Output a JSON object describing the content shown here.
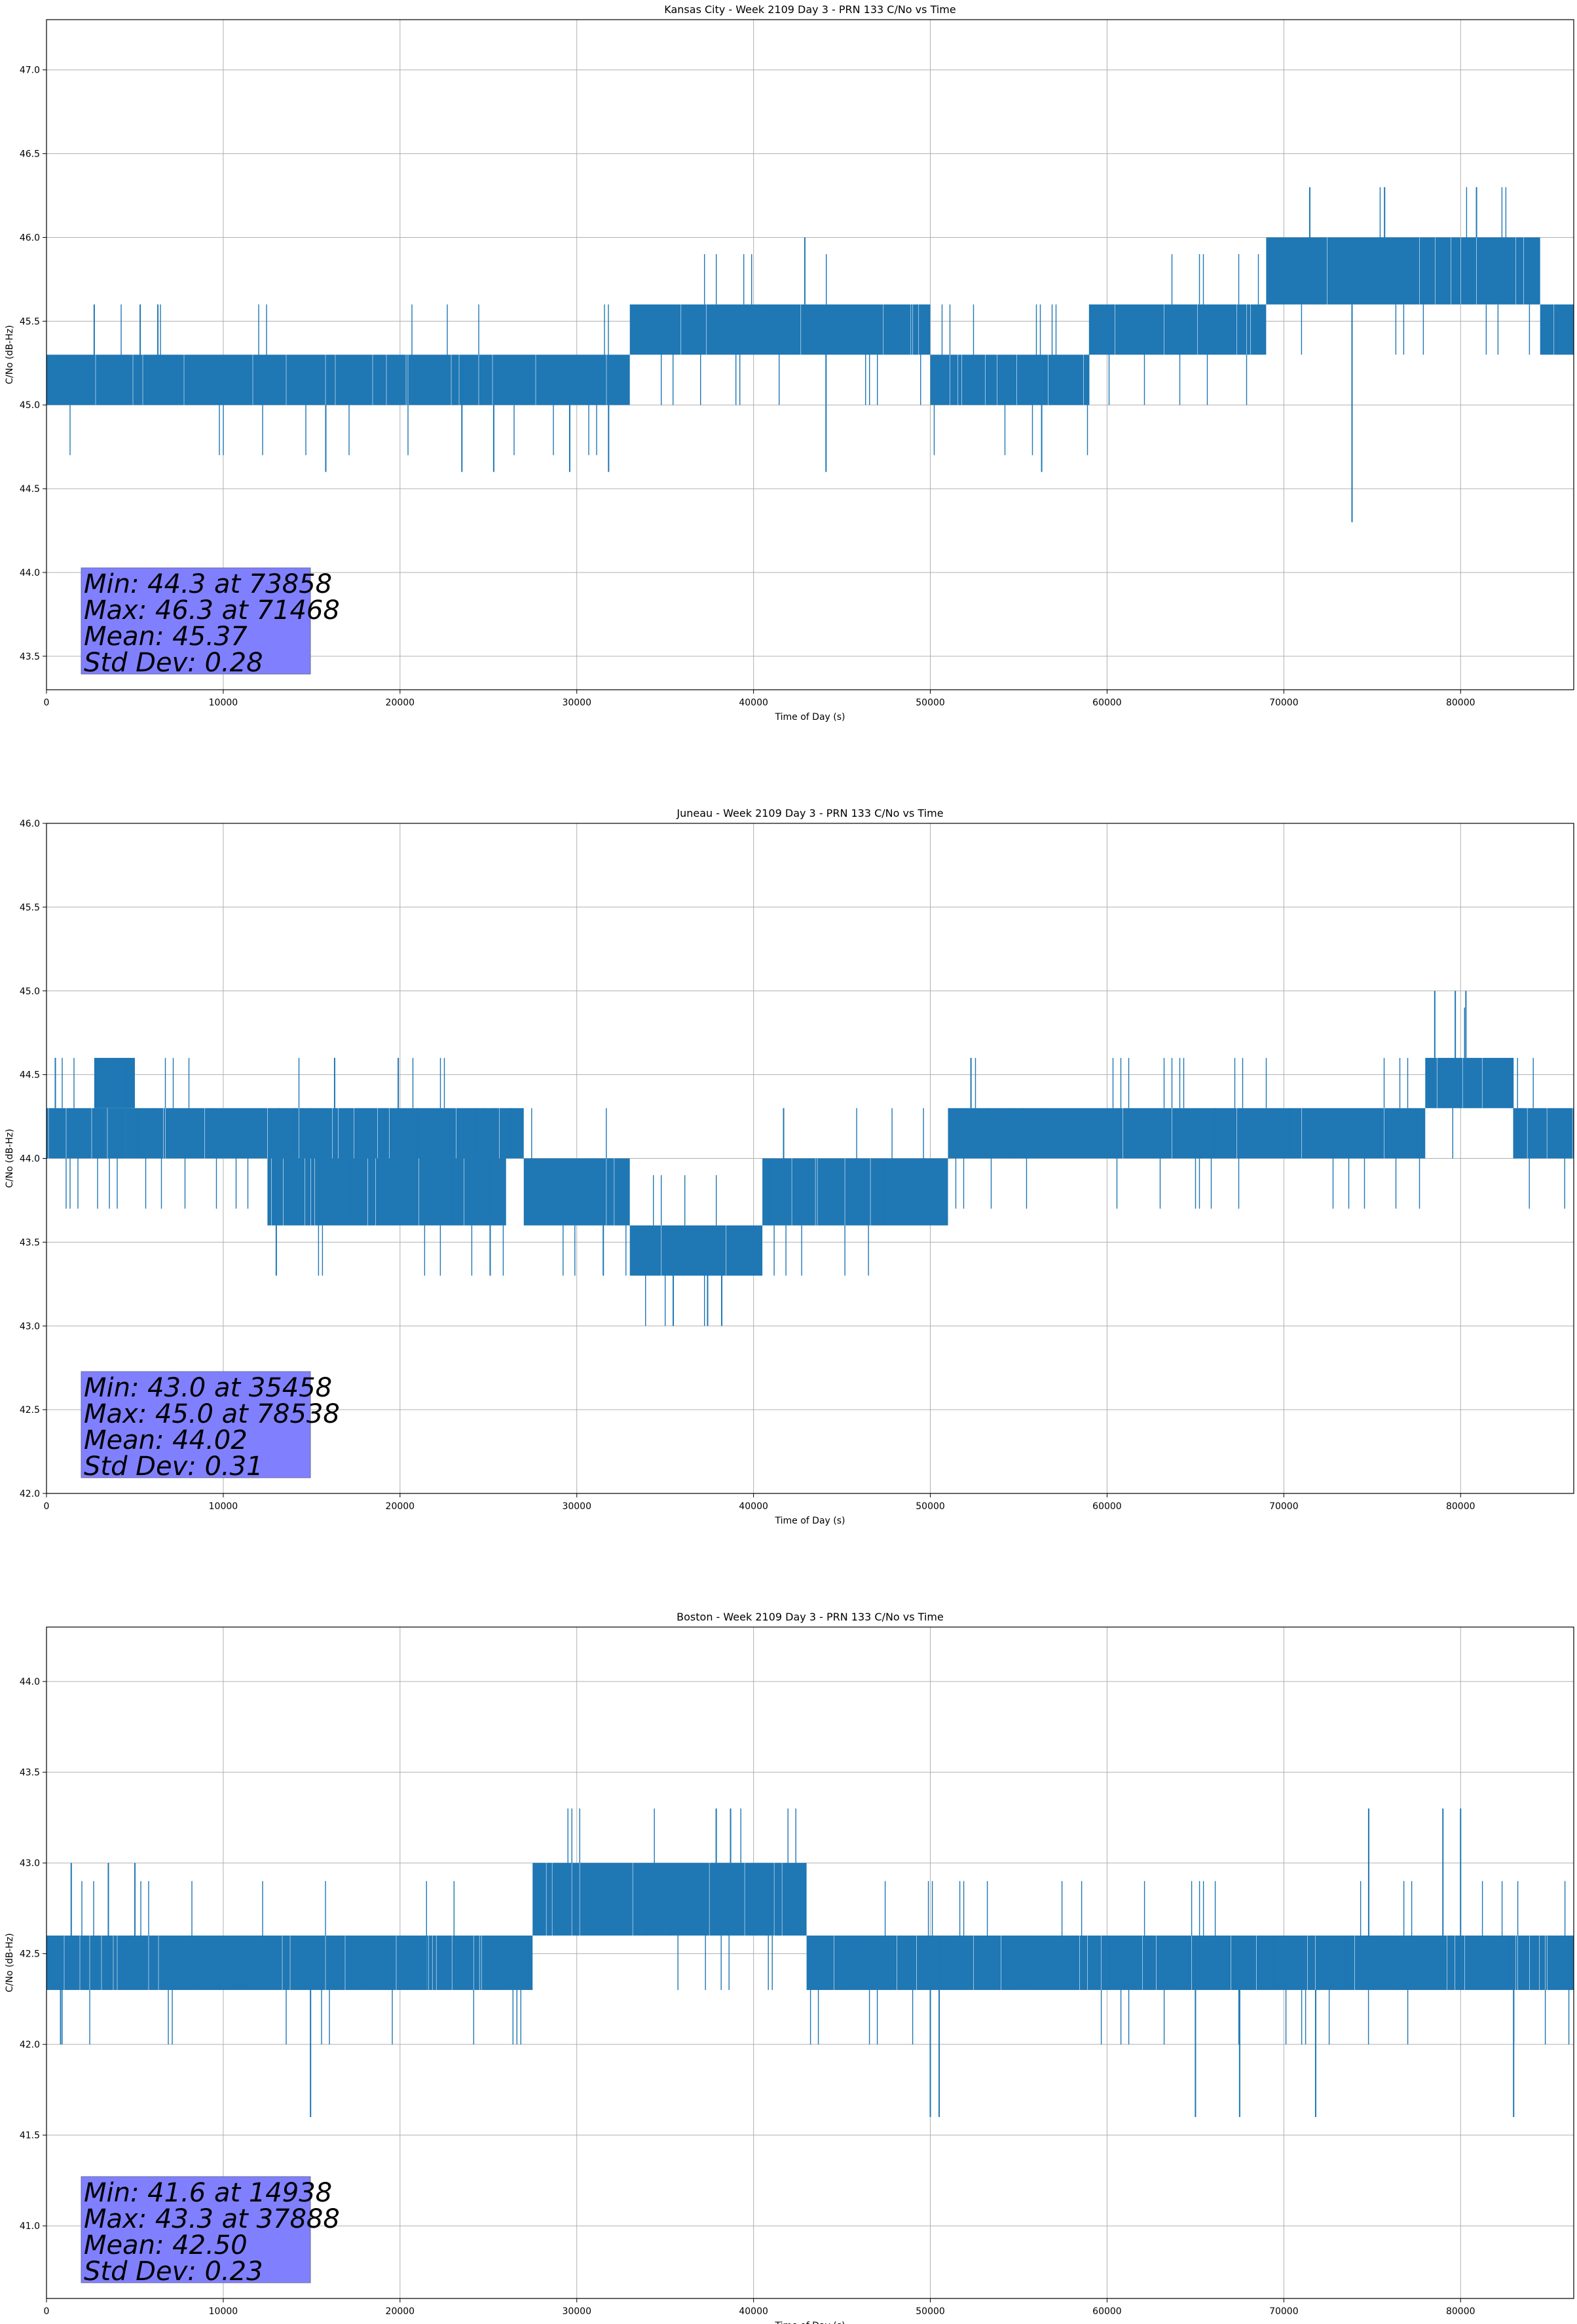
{
  "chart_data": [
    {
      "type": "line",
      "title": "Kansas City - Week 2109 Day 3 - PRN 133 C/No vs Time",
      "xlabel": "Time of Day (s)",
      "ylabel": "C/No (dB-Hz)",
      "xlim": [
        0,
        86400
      ],
      "ylim": [
        43.3,
        47.3
      ],
      "x_ticks": [
        0,
        10000,
        20000,
        30000,
        40000,
        50000,
        60000,
        70000,
        80000
      ],
      "y_ticks": [
        43.5,
        44.0,
        44.5,
        45.0,
        45.5,
        46.0,
        46.5,
        47.0
      ],
      "y_ticks_text": [
        "43.5",
        "44.0",
        "44.5",
        "45.0",
        "45.5",
        "46.0",
        "46.5",
        "47.0"
      ],
      "grid": true,
      "series_color": "#1f77b4",
      "series": [
        {
          "segments": [
            {
              "x": [
                0,
                33000
              ],
              "low": 45.0,
              "high": 45.3
            },
            {
              "x": [
                33000,
                50000
              ],
              "low": 45.3,
              "high": 45.6
            },
            {
              "x": [
                50000,
                54000
              ],
              "low": 45.0,
              "high": 45.3
            },
            {
              "x": [
                54000,
                59000
              ],
              "low": 45.0,
              "high": 45.3
            },
            {
              "x": [
                59000,
                69000
              ],
              "low": 45.3,
              "high": 45.6
            },
            {
              "x": [
                69000,
                84500
              ],
              "low": 45.6,
              "high": 46.0
            },
            {
              "x": [
                84500,
                86400
              ],
              "low": 45.3,
              "high": 45.6
            }
          ],
          "spikes": [
            {
              "x": 2700,
              "y": 45.6
            },
            {
              "x": 5300,
              "y": 45.6
            },
            {
              "x": 6300,
              "y": 45.6
            },
            {
              "x": 15800,
              "y": 44.6
            },
            {
              "x": 23500,
              "y": 44.6
            },
            {
              "x": 25300,
              "y": 44.6
            },
            {
              "x": 29600,
              "y": 44.6
            },
            {
              "x": 31800,
              "y": 44.6
            },
            {
              "x": 42900,
              "y": 46.0
            },
            {
              "x": 44100,
              "y": 44.6
            },
            {
              "x": 56300,
              "y": 44.6
            },
            {
              "x": 71468,
              "y": 46.3
            },
            {
              "x": 73858,
              "y": 44.3
            },
            {
              "x": 75700,
              "y": 46.3
            },
            {
              "x": 80900,
              "y": 46.3
            }
          ]
        }
      ],
      "stats": [
        "Min: 44.3 at 73858",
        "Max: 46.3 at 71468",
        "Mean: 45.37",
        "Std Dev: 0.28"
      ]
    },
    {
      "type": "line",
      "title": "Juneau - Week 2109 Day 3 - PRN 133 C/No vs Time",
      "xlabel": "Time of Day (s)",
      "ylabel": "C/No (dB-Hz)",
      "xlim": [
        0,
        86400
      ],
      "ylim": [
        42.0,
        46.0
      ],
      "x_ticks": [
        0,
        10000,
        20000,
        30000,
        40000,
        50000,
        60000,
        70000,
        80000
      ],
      "y_ticks": [
        42.0,
        42.5,
        43.0,
        43.5,
        44.0,
        44.5,
        45.0,
        45.5,
        46.0
      ],
      "y_ticks_text": [
        "42.0",
        "42.5",
        "43.0",
        "43.5",
        "44.0",
        "44.5",
        "45.0",
        "45.5",
        "46.0"
      ],
      "grid": true,
      "series_color": "#1f77b4",
      "series": [
        {
          "segments": [
            {
              "x": [
                0,
                4500
              ],
              "low": 44.0,
              "high": 44.3
            },
            {
              "x": [
                2700,
                5000
              ],
              "low": 44.3,
              "high": 44.6
            },
            {
              "x": [
                4500,
                27000
              ],
              "low": 44.0,
              "high": 44.3
            },
            {
              "x": [
                12500,
                26000
              ],
              "low": 43.6,
              "high": 44.0
            },
            {
              "x": [
                27000,
                33000
              ],
              "low": 43.6,
              "high": 44.0
            },
            {
              "x": [
                33000,
                40500
              ],
              "low": 43.3,
              "high": 43.6
            },
            {
              "x": [
                40500,
                51000
              ],
              "low": 43.6,
              "high": 44.0
            },
            {
              "x": [
                51000,
                78000
              ],
              "low": 44.0,
              "high": 44.3
            },
            {
              "x": [
                78000,
                83000
              ],
              "low": 44.3,
              "high": 44.6
            },
            {
              "x": [
                83000,
                86400
              ],
              "low": 44.0,
              "high": 44.3
            }
          ],
          "spikes": [
            {
              "x": 500,
              "y": 44.6
            },
            {
              "x": 13000,
              "y": 43.3
            },
            {
              "x": 16300,
              "y": 44.6
            },
            {
              "x": 19900,
              "y": 44.6
            },
            {
              "x": 25100,
              "y": 43.3
            },
            {
              "x": 31500,
              "y": 43.3
            },
            {
              "x": 35458,
              "y": 43.0
            },
            {
              "x": 37400,
              "y": 43.0
            },
            {
              "x": 38200,
              "y": 43.0
            },
            {
              "x": 41700,
              "y": 44.3
            },
            {
              "x": 52300,
              "y": 44.6
            },
            {
              "x": 78538,
              "y": 45.0
            },
            {
              "x": 79700,
              "y": 45.0
            },
            {
              "x": 80300,
              "y": 45.0
            }
          ]
        }
      ],
      "stats": [
        "Min: 43.0 at 35458",
        "Max: 45.0 at 78538",
        "Mean: 44.02",
        "Std Dev: 0.31"
      ]
    },
    {
      "type": "line",
      "title": "Boston - Week 2109 Day 3 - PRN 133 C/No vs Time",
      "xlabel": "Time of Day (s)",
      "ylabel": "C/No (dB-Hz)",
      "xlim": [
        0,
        86400
      ],
      "ylim": [
        40.6,
        44.3
      ],
      "x_ticks": [
        0,
        10000,
        20000,
        30000,
        40000,
        50000,
        60000,
        70000,
        80000
      ],
      "y_ticks": [
        41.0,
        41.5,
        42.0,
        42.5,
        43.0,
        43.5,
        44.0
      ],
      "y_ticks_text": [
        "41.0",
        "41.5",
        "42.0",
        "42.5",
        "43.0",
        "43.5",
        "44.0"
      ],
      "grid": true,
      "series_color": "#1f77b4",
      "series": [
        {
          "segments": [
            {
              "x": [
                0,
                21500
              ],
              "low": 42.3,
              "high": 42.6
            },
            {
              "x": [
                21500,
                27500
              ],
              "low": 42.3,
              "high": 42.6
            },
            {
              "x": [
                27500,
                43000
              ],
              "low": 42.6,
              "high": 43.0
            },
            {
              "x": [
                43000,
                86400
              ],
              "low": 42.3,
              "high": 42.6
            }
          ],
          "spikes": [
            {
              "x": 800,
              "y": 42.0
            },
            {
              "x": 1400,
              "y": 43.0
            },
            {
              "x": 3500,
              "y": 43.0
            },
            {
              "x": 5000,
              "y": 43.0
            },
            {
              "x": 14938,
              "y": 41.6
            },
            {
              "x": 37888,
              "y": 43.3
            },
            {
              "x": 38700,
              "y": 43.3
            },
            {
              "x": 50000,
              "y": 41.6
            },
            {
              "x": 50500,
              "y": 41.6
            },
            {
              "x": 65000,
              "y": 41.6
            },
            {
              "x": 67500,
              "y": 41.6
            },
            {
              "x": 71800,
              "y": 41.6
            },
            {
              "x": 74800,
              "y": 43.3
            },
            {
              "x": 79000,
              "y": 43.3
            },
            {
              "x": 80000,
              "y": 43.3
            },
            {
              "x": 83000,
              "y": 41.6
            }
          ]
        }
      ],
      "stats": [
        "Min: 41.6 at 14938",
        "Max: 43.3 at 37888",
        "Mean: 42.50",
        "Std Dev: 0.23"
      ]
    }
  ]
}
